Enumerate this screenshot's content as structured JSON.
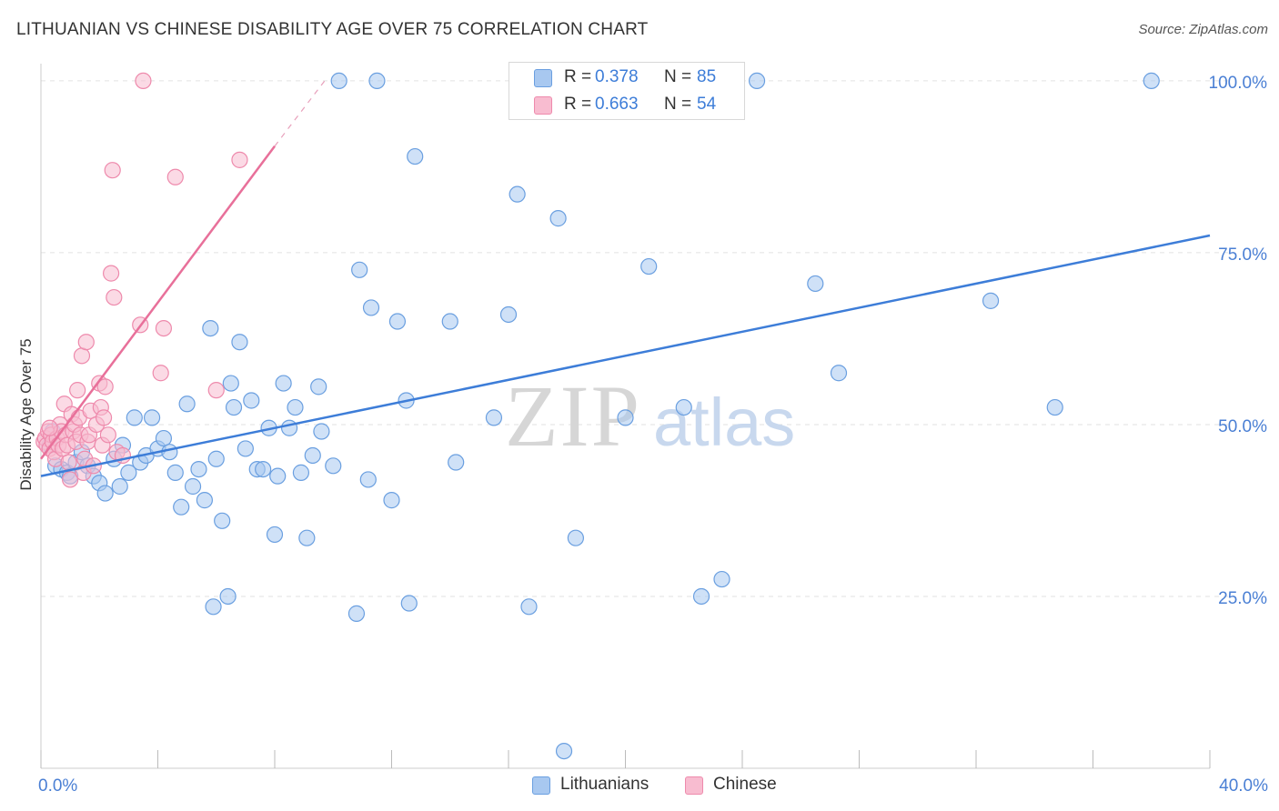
{
  "header": {
    "title": "LITHUANIAN VS CHINESE DISABILITY AGE OVER 75 CORRELATION CHART",
    "source": "Source: ZipAtlas.com"
  },
  "watermark": {
    "zip": "ZIP",
    "atlas": "atlas"
  },
  "legend": {
    "rows": [
      {
        "r_label": "R =",
        "r_value": "0.378",
        "n_label": "N =",
        "n_value": "85",
        "color": "#a8c8f0",
        "stroke": "#6a9fe0"
      },
      {
        "r_label": "R =",
        "r_value": "0.663",
        "n_label": "N =",
        "n_value": "54",
        "color": "#f8bcd0",
        "stroke": "#ee8aac"
      }
    ]
  },
  "bottom_legend": [
    {
      "label": "Lithuanians",
      "color": "#a8c8f0",
      "stroke": "#6a9fe0"
    },
    {
      "label": "Chinese",
      "color": "#f8bcd0",
      "stroke": "#ee8aac"
    }
  ],
  "colors": {
    "blue": "#3d7dd8",
    "pink": "#e8709a",
    "tick_text": "#4a7fd4"
  },
  "chart_data": {
    "type": "scatter",
    "title": "LITHUANIAN VS CHINESE DISABILITY AGE OVER 75 CORRELATION CHART",
    "ylabel": "Disability Age Over 75",
    "xlabel": "",
    "xlim": [
      0,
      40
    ],
    "ylim": [
      0,
      102.5
    ],
    "x_tick_labels": [
      {
        "value": 0,
        "label": "0.0%"
      },
      {
        "value": 40,
        "label": "40.0%"
      }
    ],
    "y_tick_labels": [
      {
        "value": 25,
        "label": "25.0%"
      },
      {
        "value": 50,
        "label": "50.0%"
      },
      {
        "value": 75,
        "label": "75.0%"
      },
      {
        "value": 100,
        "label": "100.0%"
      }
    ],
    "grid": true,
    "series": [
      {
        "name": "Lithuanians",
        "color": "#a8c8f0",
        "stroke": "#6a9fe0",
        "trend": {
          "x": [
            0,
            40
          ],
          "y": [
            42.5,
            77.5
          ],
          "color": "#3d7dd8"
        },
        "points": [
          [
            0.3,
            47.0
          ],
          [
            0.5,
            44.0
          ],
          [
            0.7,
            43.5
          ],
          [
            0.9,
            43.0
          ],
          [
            1.2,
            44.5
          ],
          [
            1.4,
            46.0
          ],
          [
            1.6,
            44.0
          ],
          [
            1.8,
            42.5
          ],
          [
            2.0,
            41.5
          ],
          [
            2.2,
            40.0
          ],
          [
            2.5,
            45.0
          ],
          [
            2.8,
            47.0
          ],
          [
            3.0,
            43.0
          ],
          [
            3.2,
            51.0
          ],
          [
            3.4,
            44.5
          ],
          [
            3.6,
            45.5
          ],
          [
            3.8,
            51.0
          ],
          [
            4.0,
            46.5
          ],
          [
            4.2,
            48.0
          ],
          [
            4.4,
            46.0
          ],
          [
            4.6,
            43.0
          ],
          [
            4.8,
            38.0
          ],
          [
            5.0,
            53.0
          ],
          [
            5.2,
            41.0
          ],
          [
            5.4,
            43.5
          ],
          [
            5.6,
            39.0
          ],
          [
            5.8,
            64.0
          ],
          [
            5.9,
            23.5
          ],
          [
            6.0,
            45.0
          ],
          [
            6.2,
            36.0
          ],
          [
            6.5,
            56.0
          ],
          [
            6.6,
            52.5
          ],
          [
            6.8,
            62.0
          ],
          [
            7.0,
            46.5
          ],
          [
            7.2,
            53.5
          ],
          [
            7.4,
            43.5
          ],
          [
            7.6,
            43.5
          ],
          [
            7.8,
            49.5
          ],
          [
            8.0,
            34.0
          ],
          [
            8.1,
            42.5
          ],
          [
            8.3,
            56.0
          ],
          [
            8.5,
            49.5
          ],
          [
            8.7,
            52.5
          ],
          [
            8.9,
            43.0
          ],
          [
            9.1,
            33.5
          ],
          [
            9.3,
            45.5
          ],
          [
            9.5,
            55.5
          ],
          [
            9.6,
            49.0
          ],
          [
            10.0,
            44.0
          ],
          [
            10.2,
            100.0
          ],
          [
            10.8,
            22.5
          ],
          [
            10.9,
            72.5
          ],
          [
            11.2,
            42.0
          ],
          [
            11.3,
            67.0
          ],
          [
            11.5,
            100.0
          ],
          [
            12.0,
            39.0
          ],
          [
            12.2,
            65.0
          ],
          [
            12.5,
            53.5
          ],
          [
            12.6,
            24.0
          ],
          [
            12.8,
            89.0
          ],
          [
            14.0,
            65.0
          ],
          [
            14.2,
            44.5
          ],
          [
            15.5,
            51.0
          ],
          [
            16.0,
            66.0
          ],
          [
            16.3,
            83.5
          ],
          [
            16.7,
            23.5
          ],
          [
            17.7,
            80.0
          ],
          [
            17.9,
            2.5
          ],
          [
            18.3,
            33.5
          ],
          [
            20.0,
            51.0
          ],
          [
            20.8,
            73.0
          ],
          [
            21.5,
            100.0
          ],
          [
            22.0,
            52.5
          ],
          [
            22.6,
            25.0
          ],
          [
            23.3,
            27.5
          ],
          [
            24.5,
            100.0
          ],
          [
            26.5,
            70.5
          ],
          [
            27.3,
            57.5
          ],
          [
            32.5,
            68.0
          ],
          [
            34.7,
            52.5
          ],
          [
            38.0,
            100.0
          ],
          [
            0.4,
            49.0
          ],
          [
            1.0,
            42.5
          ],
          [
            2.7,
            41.0
          ],
          [
            6.4,
            25.0
          ]
        ]
      },
      {
        "name": "Chinese",
        "color": "#f8bcd0",
        "stroke": "#ee8aac",
        "trend": {
          "x": [
            0,
            8
          ],
          "y": [
            45.0,
            90.5
          ],
          "color": "#e8709a",
          "dash_to": [
            9.8,
            100.5
          ]
        },
        "points": [
          [
            0.1,
            47.5
          ],
          [
            0.15,
            48.0
          ],
          [
            0.2,
            47.0
          ],
          [
            0.25,
            49.0
          ],
          [
            0.3,
            46.5
          ],
          [
            0.35,
            48.5
          ],
          [
            0.4,
            47.5
          ],
          [
            0.45,
            46.0
          ],
          [
            0.5,
            45.0
          ],
          [
            0.55,
            48.0
          ],
          [
            0.6,
            47.0
          ],
          [
            0.65,
            50.0
          ],
          [
            0.7,
            49.0
          ],
          [
            0.75,
            46.5
          ],
          [
            0.8,
            53.0
          ],
          [
            0.85,
            48.5
          ],
          [
            0.9,
            47.0
          ],
          [
            0.95,
            44.5
          ],
          [
            1.0,
            42.0
          ],
          [
            1.05,
            51.5
          ],
          [
            1.1,
            49.0
          ],
          [
            1.15,
            50.0
          ],
          [
            1.2,
            47.5
          ],
          [
            1.25,
            55.0
          ],
          [
            1.3,
            51.0
          ],
          [
            1.35,
            48.5
          ],
          [
            1.4,
            60.0
          ],
          [
            1.45,
            43.0
          ],
          [
            1.5,
            45.0
          ],
          [
            1.55,
            62.0
          ],
          [
            1.6,
            47.5
          ],
          [
            1.65,
            48.5
          ],
          [
            1.7,
            52.0
          ],
          [
            1.8,
            44.0
          ],
          [
            1.9,
            50.0
          ],
          [
            2.0,
            56.0
          ],
          [
            2.05,
            52.5
          ],
          [
            2.1,
            47.0
          ],
          [
            2.15,
            51.0
          ],
          [
            2.2,
            55.5
          ],
          [
            2.3,
            48.5
          ],
          [
            2.4,
            72.0
          ],
          [
            2.45,
            87.0
          ],
          [
            2.5,
            68.5
          ],
          [
            2.6,
            46.0
          ],
          [
            2.8,
            45.5
          ],
          [
            3.5,
            100.0
          ],
          [
            3.4,
            64.5
          ],
          [
            4.1,
            57.5
          ],
          [
            4.2,
            64.0
          ],
          [
            4.6,
            86.0
          ],
          [
            6.0,
            55.0
          ],
          [
            6.8,
            88.5
          ],
          [
            0.3,
            49.5
          ]
        ]
      }
    ]
  }
}
